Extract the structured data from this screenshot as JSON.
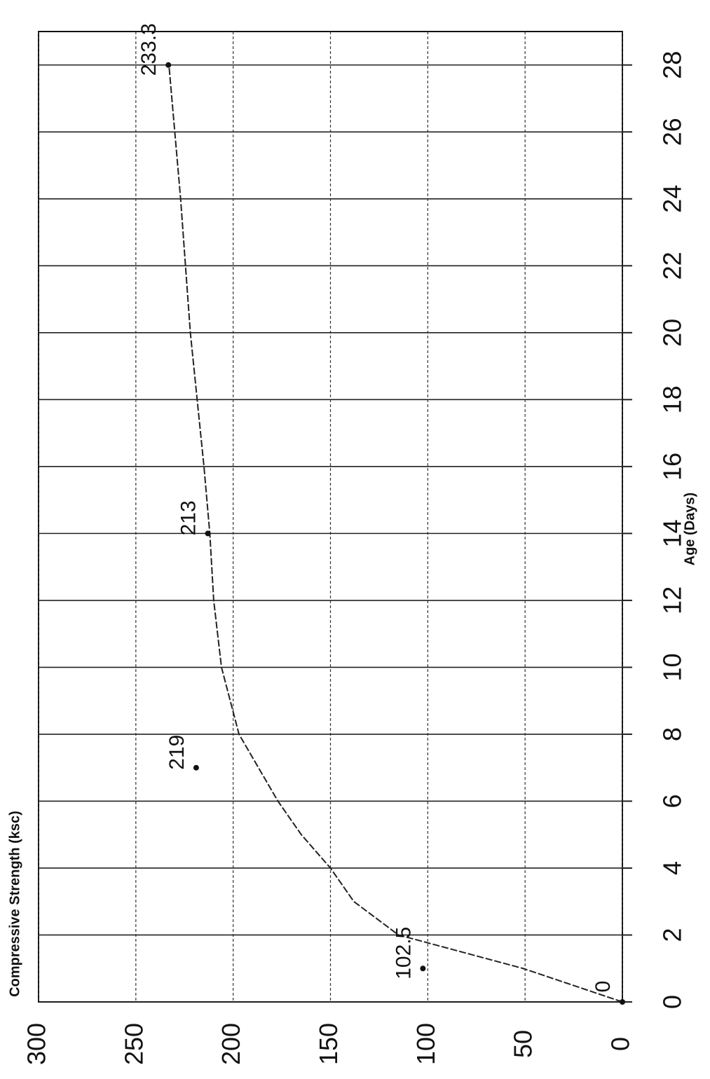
{
  "chart_data": {
    "type": "line",
    "title": "Compressive Strength (ksc)",
    "x_label": "Age (Days)",
    "x": [
      0,
      1,
      2,
      3,
      4,
      5,
      6,
      8,
      10,
      12,
      14,
      16,
      20,
      24,
      28
    ],
    "series": [
      {
        "color": "#222222",
        "values": [
          0,
          51,
          115,
          138,
          150,
          165,
          177,
          197,
          206,
          210,
          212,
          215,
          222,
          227,
          233
        ]
      }
    ],
    "points": {
      "x": [
        0,
        1,
        7,
        14,
        28
      ],
      "values": [
        0,
        102.5,
        219,
        213,
        233.3
      ],
      "color": "#111111"
    },
    "xlim": [
      0,
      29
    ],
    "xticks": [
      0,
      2,
      4,
      6,
      8,
      10,
      12,
      14,
      16,
      18,
      20,
      22,
      24,
      26,
      28
    ],
    "ylim": [
      0,
      300
    ],
    "yticks": [
      0,
      50,
      100,
      150,
      200,
      250,
      300
    ],
    "grid": true
  }
}
